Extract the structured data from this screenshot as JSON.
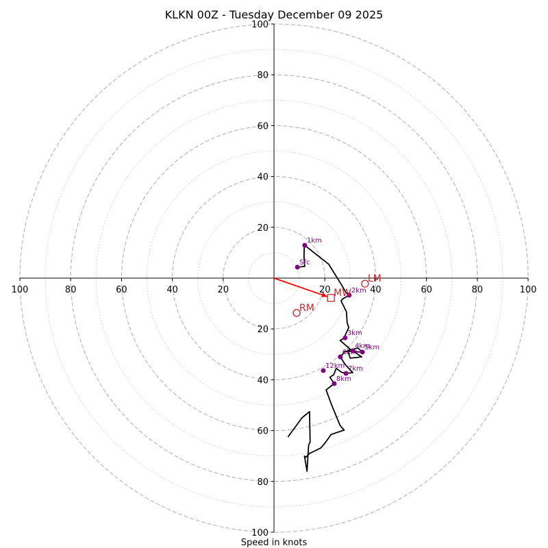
{
  "chart_data": {
    "type": "scatter",
    "subtype": "hodograph",
    "title": "KLKN 00Z - Tuesday December 09 2025",
    "xlabel": "Speed in knots",
    "ylabel": "",
    "xlim": [
      -100,
      100
    ],
    "ylim": [
      -100,
      100
    ],
    "ring_major": [
      20,
      40,
      60,
      80,
      100
    ],
    "ring_minor": [
      10,
      30,
      50,
      70,
      90
    ],
    "x_tick_labels": [
      "100",
      "80",
      "60",
      "40",
      "20",
      "20",
      "40",
      "60",
      "80",
      "100"
    ],
    "x_tick_values": [
      -100,
      -80,
      -60,
      -40,
      -20,
      20,
      40,
      60,
      80,
      100
    ],
    "y_tick_labels": [
      "100",
      "80",
      "60",
      "40",
      "20",
      "20",
      "40",
      "60",
      "80",
      "100"
    ],
    "y_tick_values": [
      100,
      80,
      60,
      40,
      20,
      -20,
      -40,
      -60,
      -80,
      -100
    ],
    "grid": true,
    "series": [
      {
        "name": "hodograph trace",
        "color": "#000000",
        "points": [
          [
            9.2,
            4.3
          ],
          [
            12.1,
            4.6
          ],
          [
            11.8,
            8.5
          ],
          [
            11.9,
            11.9
          ],
          [
            12.1,
            12.9
          ],
          [
            17.0,
            9.0
          ],
          [
            21.5,
            5.5
          ],
          [
            24.0,
            1.5
          ],
          [
            26.5,
            -2.5
          ],
          [
            28.2,
            -5.5
          ],
          [
            29.6,
            -6.7
          ],
          [
            27.0,
            -8.2
          ],
          [
            26.4,
            -9.0
          ],
          [
            28.5,
            -13.2
          ],
          [
            28.8,
            -17.5
          ],
          [
            29.4,
            -19.5
          ],
          [
            28.0,
            -22.5
          ],
          [
            28.0,
            -23.5
          ],
          [
            26.0,
            -24.5
          ],
          [
            30.0,
            -28.0
          ],
          [
            31.0,
            -28.6
          ],
          [
            34.5,
            -31.0
          ],
          [
            30.0,
            -31.5
          ],
          [
            29.0,
            -28.5
          ],
          [
            33.0,
            -27.5
          ],
          [
            34.8,
            -29.1
          ],
          [
            28.0,
            -28.8
          ],
          [
            26.1,
            -31.0
          ],
          [
            28.0,
            -34.0
          ],
          [
            31.0,
            -37.2
          ],
          [
            28.3,
            -37.5
          ],
          [
            26.5,
            -37.0
          ],
          [
            24.5,
            -35.5
          ],
          [
            23.5,
            -38.0
          ],
          [
            22.0,
            -39.0
          ],
          [
            23.7,
            -41.5
          ],
          [
            20.5,
            -44.0
          ],
          [
            22.5,
            -49.5
          ],
          [
            26.0,
            -58.0
          ],
          [
            27.6,
            -59.8
          ],
          [
            22.5,
            -61.5
          ],
          [
            20.0,
            -65.0
          ],
          [
            18.5,
            -66.8
          ],
          [
            14.0,
            -69.0
          ],
          [
            12.5,
            -70.5
          ],
          [
            12.0,
            -70.0
          ],
          [
            13.0,
            -76.0
          ],
          [
            13.4,
            -69.5
          ],
          [
            13.6,
            -65.8
          ],
          [
            14.2,
            -64.5
          ],
          [
            14.0,
            -52.5
          ],
          [
            11.0,
            -55.0
          ],
          [
            5.5,
            -62.5
          ]
        ]
      },
      {
        "name": "height markers",
        "color": "#800080",
        "points": [
          {
            "label": "Sfc",
            "u": 9.2,
            "v": 4.3
          },
          {
            "label": "1km",
            "u": 12.1,
            "v": 12.9
          },
          {
            "label": "2km",
            "u": 29.6,
            "v": -6.7
          },
          {
            "label": "3km",
            "u": 28.0,
            "v": -23.5
          },
          {
            "label": "4km",
            "u": 31.0,
            "v": -28.6
          },
          {
            "label": "5km",
            "u": 34.8,
            "v": -29.1
          },
          {
            "label": "6km",
            "u": 26.1,
            "v": -31.0
          },
          {
            "label": "7km",
            "u": 28.3,
            "v": -37.5
          },
          {
            "label": "8km",
            "u": 23.7,
            "v": -41.5
          },
          {
            "label": "12km",
            "u": 19.4,
            "v": -36.4
          }
        ]
      },
      {
        "name": "storm motion",
        "color": "#c0282d",
        "points": [
          {
            "label": "MW",
            "u": 22.4,
            "v": -7.8,
            "marker": "square"
          },
          {
            "label": "LM",
            "u": 35.8,
            "v": -2.2,
            "marker": "circle"
          },
          {
            "label": "RM",
            "u": 8.9,
            "v": -13.7,
            "marker": "circle"
          }
        ]
      },
      {
        "name": "mean wind vector",
        "color": "#ff0000",
        "from": [
          0,
          0
        ],
        "to": [
          21.0,
          -7.3
        ]
      }
    ]
  }
}
